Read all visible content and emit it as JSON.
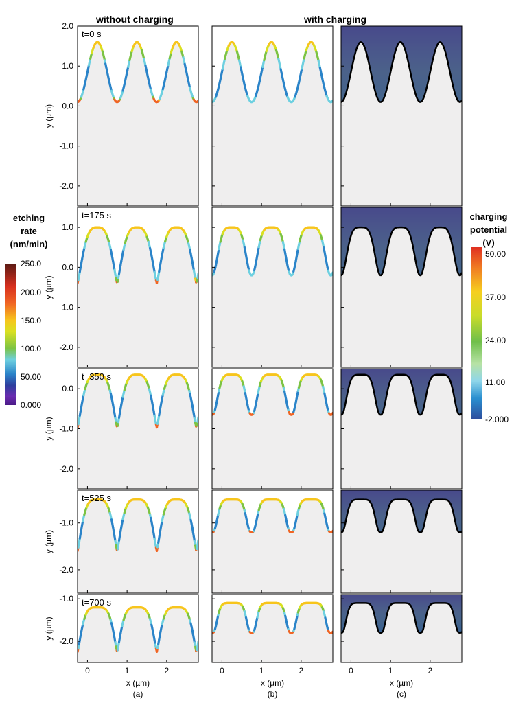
{
  "headers": {
    "left": "without charging",
    "right": "with charging"
  },
  "panel_labels": [
    "(a)",
    "(b)",
    "(c)"
  ],
  "xlabel": "x (µm)",
  "ylabel": "y (µm)",
  "times": [
    "t=0 s",
    "t=175 s",
    "t=350 s",
    "t=525 s",
    "t=700 s"
  ],
  "colorbar_left": {
    "title": [
      "etching",
      "rate",
      "(nm/min)"
    ],
    "ticks": [
      "250.0",
      "200.0",
      "150.0",
      "100.0",
      "50.00",
      "0.000"
    ]
  },
  "colorbar_right": {
    "title": [
      "charging",
      "potential",
      "(V)"
    ],
    "ticks": [
      "50.00",
      "37.00",
      "24.00",
      "11.00",
      "-2.000"
    ]
  },
  "colors": {
    "background_fill": "#efeeee",
    "potential_low": "#2d4f9e",
    "potential_high": "#e03021",
    "rate_low": "#4a1a86",
    "rate_high": "#5a1a14"
  },
  "chart_data": [
    {
      "type": "line",
      "note_rows": "etching simulation snapshots, column (a) without charging, column (b) with charging, column (c) charging potential field",
      "x_ticks": [
        "0",
        "1",
        "2"
      ],
      "xlim": [
        -0.25,
        2.8
      ],
      "rows": [
        {
          "time": "t=0 s",
          "ylim": [
            -2.5,
            2.0
          ],
          "y_ticks": [
            "2.0",
            "1.0",
            "0.0",
            "-1.0",
            "-2.0"
          ],
          "a": {
            "peak": 1.6,
            "valley": 0.1
          },
          "b": {
            "peak": 1.6,
            "valley": 0.1
          }
        },
        {
          "time": "t=175 s",
          "ylim": [
            -2.5,
            1.5
          ],
          "y_ticks": [
            "1.0",
            "0.0",
            "-1.0",
            "-2.0"
          ],
          "a": {
            "peak": 1.0,
            "valley": -0.4
          },
          "b": {
            "peak": 1.0,
            "valley": -0.2
          }
        },
        {
          "time": "t=350 s",
          "ylim": [
            -2.5,
            0.5
          ],
          "y_ticks": [
            "0.0",
            "-1.0",
            "-2.0"
          ],
          "a": {
            "peak": 0.35,
            "valley": -0.97
          },
          "b": {
            "peak": 0.35,
            "valley": -0.65
          }
        },
        {
          "time": "t=525 s",
          "ylim": [
            -2.5,
            -0.3
          ],
          "y_ticks": [
            "-1.0",
            "-2.0"
          ],
          "a": {
            "peak": -0.5,
            "valley": -1.6
          },
          "b": {
            "peak": -0.5,
            "valley": -1.2
          }
        },
        {
          "time": "t=700 s",
          "ylim": [
            -2.5,
            -0.9
          ],
          "y_ticks": [
            "-1.0",
            "-2.0"
          ],
          "a": {
            "peak": -1.2,
            "valley": -2.25
          },
          "b": {
            "peak": -1.1,
            "valley": -1.8
          }
        }
      ]
    }
  ]
}
